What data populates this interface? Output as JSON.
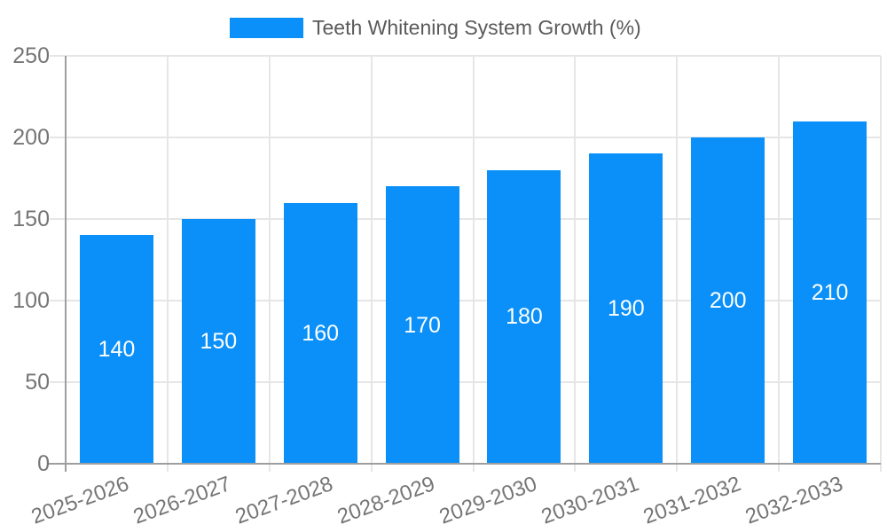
{
  "chart_data": {
    "type": "bar",
    "categories": [
      "2025-2026",
      "2026-2027",
      "2027-2028",
      "2028-2029",
      "2029-2030",
      "2030-2031",
      "2031-2032",
      "2032-2033"
    ],
    "series": [
      {
        "name": "Teeth Whitening System Growth (%)",
        "values": [
          140,
          150,
          160,
          170,
          180,
          190,
          200,
          210
        ]
      }
    ],
    "value_labels": [
      "140",
      "150",
      "160",
      "170",
      "180",
      "190",
      "200",
      "210"
    ],
    "title": "",
    "xlabel": "",
    "ylabel": "",
    "ylim": [
      0,
      250
    ],
    "ytick_step": 50,
    "ytick_labels": [
      "0",
      "50",
      "100",
      "150",
      "200",
      "250"
    ],
    "grid": "on",
    "legend_position": "top",
    "colors": {
      "bar": "#0A90F8",
      "gridline": "#e6e6e6",
      "axis_line": "#9e9e9e",
      "tick_text": "#757575",
      "legend_text": "#5a5a5a",
      "value_text": "#ffffff",
      "background": "#ffffff"
    }
  }
}
